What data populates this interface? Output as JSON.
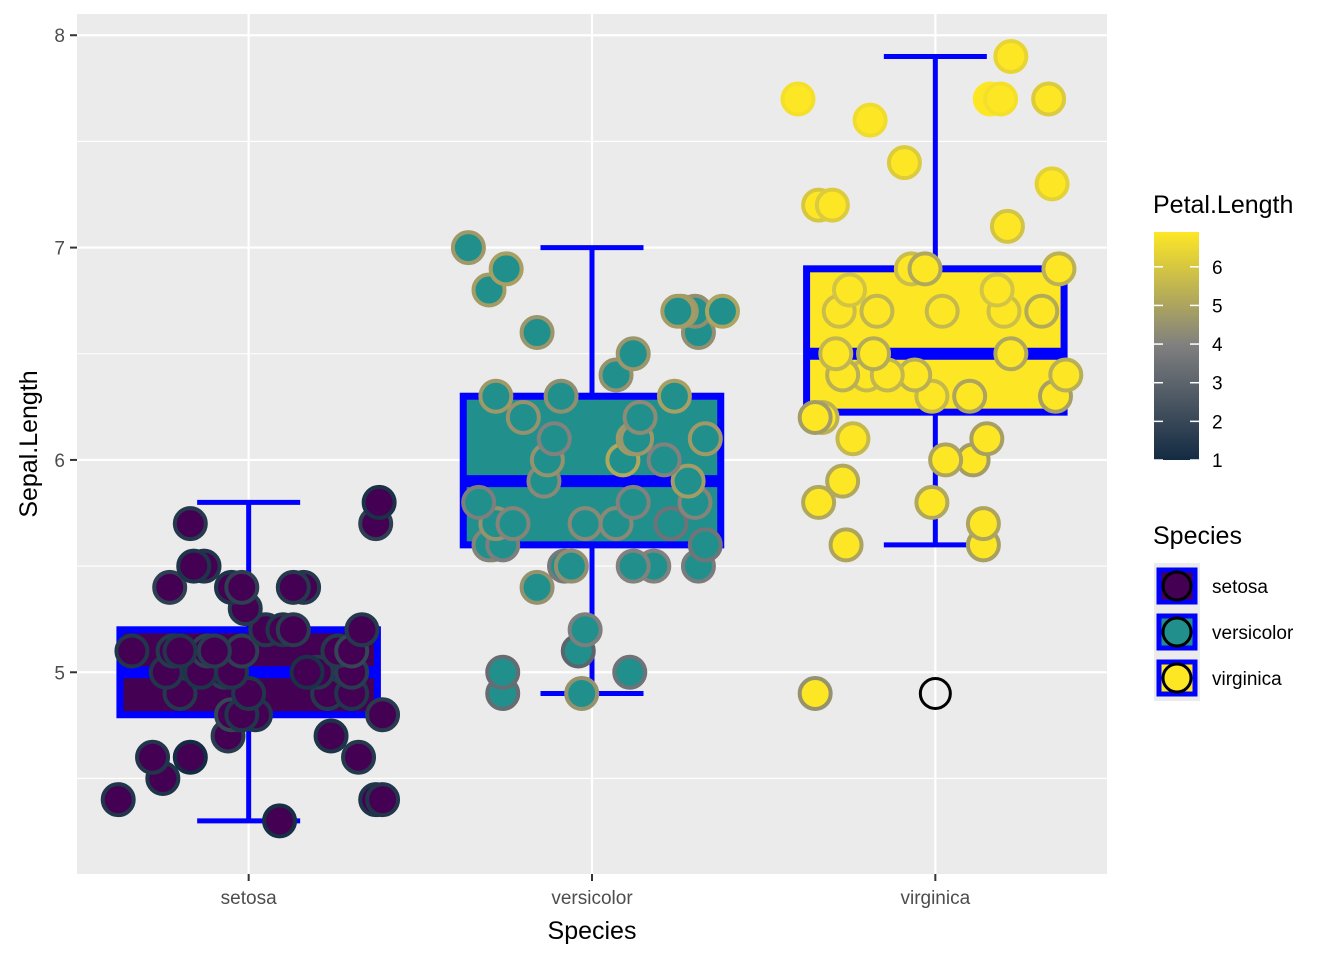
{
  "chart_data": {
    "type": "boxplot-jitter",
    "xlabel": "Species",
    "ylabel": "Sepal.Length",
    "categories": [
      "setosa",
      "versicolor",
      "virginica"
    ],
    "ylim": [
      4.05,
      8.1
    ],
    "y_ticks": [
      5,
      6,
      7,
      8
    ],
    "grid": true,
    "box_outline_color": "#0000ff",
    "panel_background": "#ebebeb",
    "grid_color": "#ffffff",
    "boxes": [
      {
        "category": "setosa",
        "min": 4.3,
        "q1": 4.8,
        "median": 5.0,
        "q3": 5.2,
        "max": 5.8,
        "fill": "#440154"
      },
      {
        "category": "versicolor",
        "min": 4.9,
        "q1": 5.6,
        "median": 5.9,
        "q3": 6.3,
        "max": 7.0,
        "fill": "#21908c"
      },
      {
        "category": "virginica",
        "min": 5.6,
        "q1": 6.225,
        "median": 6.5,
        "q3": 6.9,
        "max": 7.9,
        "fill": "#fde725"
      }
    ],
    "outliers": [
      {
        "category": "virginica",
        "y": 4.9
      }
    ],
    "points": [
      {
        "category": "setosa",
        "x_offset": -0.38,
        "y": 4.4,
        "petal_length": 1.4
      },
      {
        "category": "setosa",
        "x_offset": 0.09,
        "y": 4.3,
        "petal_length": 1.1
      },
      {
        "category": "setosa",
        "x_offset": 0.37,
        "y": 4.4,
        "petal_length": 1.3
      },
      {
        "category": "setosa",
        "x_offset": 0.39,
        "y": 4.4,
        "petal_length": 1.4
      },
      {
        "category": "setosa",
        "x_offset": -0.25,
        "y": 4.5,
        "petal_length": 1.3
      },
      {
        "category": "setosa",
        "x_offset": -0.28,
        "y": 4.6,
        "petal_length": 1.4
      },
      {
        "category": "setosa",
        "x_offset": -0.17,
        "y": 4.6,
        "petal_length": 1.0
      },
      {
        "category": "setosa",
        "x_offset": 0.32,
        "y": 4.6,
        "petal_length": 1.5
      },
      {
        "category": "setosa",
        "x_offset": 0.24,
        "y": 4.7,
        "petal_length": 1.3
      },
      {
        "category": "setosa",
        "x_offset": -0.06,
        "y": 4.7,
        "petal_length": 1.6
      },
      {
        "category": "setosa",
        "x_offset": -0.03,
        "y": 4.8,
        "petal_length": 1.6
      },
      {
        "category": "setosa",
        "x_offset": -0.05,
        "y": 4.8,
        "petal_length": 1.9
      },
      {
        "category": "setosa",
        "x_offset": 0.02,
        "y": 4.8,
        "petal_length": 1.4
      },
      {
        "category": "setosa",
        "x_offset": 0.39,
        "y": 4.8,
        "petal_length": 1.6
      },
      {
        "category": "setosa",
        "x_offset": -0.02,
        "y": 4.8,
        "petal_length": 1.4
      },
      {
        "category": "setosa",
        "x_offset": 0.0,
        "y": 4.9,
        "petal_length": 1.4
      },
      {
        "category": "setosa",
        "x_offset": -0.2,
        "y": 4.9,
        "petal_length": 1.5
      },
      {
        "category": "setosa",
        "x_offset": 0.23,
        "y": 4.9,
        "petal_length": 1.5
      },
      {
        "category": "setosa",
        "x_offset": 0.3,
        "y": 4.9,
        "petal_length": 1.4
      },
      {
        "category": "setosa",
        "x_offset": -0.24,
        "y": 5.0,
        "petal_length": 1.4
      },
      {
        "category": "setosa",
        "x_offset": -0.07,
        "y": 5.0,
        "petal_length": 1.6
      },
      {
        "category": "setosa",
        "x_offset": 0.2,
        "y": 5.0,
        "petal_length": 1.5
      },
      {
        "category": "setosa",
        "x_offset": 0.17,
        "y": 5.0,
        "petal_length": 1.2
      },
      {
        "category": "setosa",
        "x_offset": -0.14,
        "y": 5.0,
        "petal_length": 1.3
      },
      {
        "category": "setosa",
        "x_offset": 0.3,
        "y": 5.0,
        "petal_length": 1.6
      },
      {
        "category": "setosa",
        "x_offset": -0.05,
        "y": 5.0,
        "petal_length": 1.4
      },
      {
        "category": "setosa",
        "x_offset": -0.34,
        "y": 5.1,
        "petal_length": 1.4
      },
      {
        "category": "setosa",
        "x_offset": -0.22,
        "y": 5.1,
        "petal_length": 1.5
      },
      {
        "category": "setosa",
        "x_offset": -0.12,
        "y": 5.1,
        "petal_length": 1.7
      },
      {
        "category": "setosa",
        "x_offset": -0.22,
        "y": 5.1,
        "petal_length": 1.5
      },
      {
        "category": "setosa",
        "x_offset": -0.02,
        "y": 5.1,
        "petal_length": 1.7
      },
      {
        "category": "setosa",
        "x_offset": 0.26,
        "y": 5.1,
        "petal_length": 1.5
      },
      {
        "category": "setosa",
        "x_offset": 0.3,
        "y": 5.1,
        "petal_length": 1.9
      },
      {
        "category": "setosa",
        "x_offset": -0.1,
        "y": 5.1,
        "petal_length": 1.6
      },
      {
        "category": "setosa",
        "x_offset": -0.2,
        "y": 5.1,
        "petal_length": 1.4
      },
      {
        "category": "setosa",
        "x_offset": 0.05,
        "y": 5.2,
        "petal_length": 1.5
      },
      {
        "category": "setosa",
        "x_offset": 0.1,
        "y": 5.2,
        "petal_length": 1.4
      },
      {
        "category": "setosa",
        "x_offset": 0.33,
        "y": 5.2,
        "petal_length": 1.5
      },
      {
        "category": "setosa",
        "x_offset": 0.13,
        "y": 5.2,
        "petal_length": 1.6
      },
      {
        "category": "setosa",
        "x_offset": -0.01,
        "y": 5.3,
        "petal_length": 1.5
      },
      {
        "category": "setosa",
        "x_offset": -0.23,
        "y": 5.4,
        "petal_length": 1.7
      },
      {
        "category": "setosa",
        "x_offset": 0.16,
        "y": 5.4,
        "petal_length": 1.5
      },
      {
        "category": "setosa",
        "x_offset": -0.05,
        "y": 5.4,
        "petal_length": 1.3
      },
      {
        "category": "setosa",
        "x_offset": -0.02,
        "y": 5.4,
        "petal_length": 1.7
      },
      {
        "category": "setosa",
        "x_offset": 0.13,
        "y": 5.4,
        "petal_length": 1.5
      },
      {
        "category": "setosa",
        "x_offset": -0.13,
        "y": 5.5,
        "petal_length": 1.4
      },
      {
        "category": "setosa",
        "x_offset": -0.16,
        "y": 5.5,
        "petal_length": 1.3
      },
      {
        "category": "setosa",
        "x_offset": 0.37,
        "y": 5.7,
        "petal_length": 1.7
      },
      {
        "category": "setosa",
        "x_offset": -0.17,
        "y": 5.7,
        "petal_length": 1.5
      },
      {
        "category": "setosa",
        "x_offset": 0.38,
        "y": 5.8,
        "petal_length": 1.2
      },
      {
        "category": "versicolor",
        "x_offset": -0.26,
        "y": 4.9,
        "petal_length": 3.3
      },
      {
        "category": "versicolor",
        "x_offset": -0.03,
        "y": 4.9,
        "petal_length": 4.5
      },
      {
        "category": "versicolor",
        "x_offset": 0.11,
        "y": 5.0,
        "petal_length": 3.5
      },
      {
        "category": "versicolor",
        "x_offset": -0.26,
        "y": 5.0,
        "petal_length": 3.3
      },
      {
        "category": "versicolor",
        "x_offset": -0.04,
        "y": 5.1,
        "petal_length": 3.0
      },
      {
        "category": "versicolor",
        "x_offset": -0.02,
        "y": 5.2,
        "petal_length": 3.9
      },
      {
        "category": "versicolor",
        "x_offset": -0.16,
        "y": 5.4,
        "petal_length": 4.5
      },
      {
        "category": "versicolor",
        "x_offset": 0.18,
        "y": 5.5,
        "petal_length": 4.0
      },
      {
        "category": "versicolor",
        "x_offset": -0.08,
        "y": 5.5,
        "petal_length": 3.7
      },
      {
        "category": "versicolor",
        "x_offset": 0.31,
        "y": 5.5,
        "petal_length": 3.8
      },
      {
        "category": "versicolor",
        "x_offset": -0.06,
        "y": 5.5,
        "petal_length": 4.4
      },
      {
        "category": "versicolor",
        "x_offset": 0.12,
        "y": 5.5,
        "petal_length": 4.0
      },
      {
        "category": "versicolor",
        "x_offset": 0.33,
        "y": 5.6,
        "petal_length": 3.6
      },
      {
        "category": "versicolor",
        "x_offset": -0.29,
        "y": 5.6,
        "petal_length": 4.5
      },
      {
        "category": "versicolor",
        "x_offset": -0.3,
        "y": 5.6,
        "petal_length": 4.1
      },
      {
        "category": "versicolor",
        "x_offset": -0.26,
        "y": 5.6,
        "petal_length": 3.9
      },
      {
        "category": "versicolor",
        "x_offset": 0.07,
        "y": 5.7,
        "petal_length": 4.2
      },
      {
        "category": "versicolor",
        "x_offset": 0.23,
        "y": 5.7,
        "petal_length": 3.5
      },
      {
        "category": "versicolor",
        "x_offset": -0.28,
        "y": 5.7,
        "petal_length": 4.5
      },
      {
        "category": "versicolor",
        "x_offset": -0.02,
        "y": 5.7,
        "petal_length": 4.2
      },
      {
        "category": "versicolor",
        "x_offset": -0.23,
        "y": 5.7,
        "petal_length": 4.1
      },
      {
        "category": "versicolor",
        "x_offset": 0.3,
        "y": 5.8,
        "petal_length": 4.1
      },
      {
        "category": "versicolor",
        "x_offset": -0.33,
        "y": 5.8,
        "petal_length": 3.9
      },
      {
        "category": "versicolor",
        "x_offset": 0.12,
        "y": 5.8,
        "petal_length": 4.0
      },
      {
        "category": "versicolor",
        "x_offset": 0.28,
        "y": 5.9,
        "petal_length": 4.8
      },
      {
        "category": "versicolor",
        "x_offset": -0.14,
        "y": 5.9,
        "petal_length": 4.2
      },
      {
        "category": "versicolor",
        "x_offset": 0.09,
        "y": 6.0,
        "petal_length": 5.1
      },
      {
        "category": "versicolor",
        "x_offset": 0.21,
        "y": 6.0,
        "petal_length": 4.0
      },
      {
        "category": "versicolor",
        "x_offset": -0.13,
        "y": 6.0,
        "petal_length": 4.5
      },
      {
        "category": "versicolor",
        "x_offset": 0.12,
        "y": 6.1,
        "petal_length": 4.7
      },
      {
        "category": "versicolor",
        "x_offset": -0.11,
        "y": 6.1,
        "petal_length": 4.0
      },
      {
        "category": "versicolor",
        "x_offset": 0.33,
        "y": 6.1,
        "petal_length": 4.7
      },
      {
        "category": "versicolor",
        "x_offset": 0.13,
        "y": 6.1,
        "petal_length": 4.6
      },
      {
        "category": "versicolor",
        "x_offset": -0.2,
        "y": 6.2,
        "petal_length": 4.5
      },
      {
        "category": "versicolor",
        "x_offset": 0.14,
        "y": 6.2,
        "petal_length": 4.3
      },
      {
        "category": "versicolor",
        "x_offset": -0.09,
        "y": 6.3,
        "petal_length": 4.4
      },
      {
        "category": "versicolor",
        "x_offset": 0.24,
        "y": 6.3,
        "petal_length": 4.9
      },
      {
        "category": "versicolor",
        "x_offset": -0.28,
        "y": 6.3,
        "petal_length": 4.7
      },
      {
        "category": "versicolor",
        "x_offset": 0.07,
        "y": 6.4,
        "petal_length": 4.5
      },
      {
        "category": "versicolor",
        "x_offset": 0.12,
        "y": 6.5,
        "petal_length": 4.6
      },
      {
        "category": "versicolor",
        "x_offset": -0.16,
        "y": 6.6,
        "petal_length": 4.6
      },
      {
        "category": "versicolor",
        "x_offset": 0.31,
        "y": 6.6,
        "petal_length": 4.4
      },
      {
        "category": "versicolor",
        "x_offset": 0.3,
        "y": 6.7,
        "petal_length": 4.4
      },
      {
        "category": "versicolor",
        "x_offset": 0.38,
        "y": 6.7,
        "petal_length": 5.0
      },
      {
        "category": "versicolor",
        "x_offset": 0.26,
        "y": 6.7,
        "petal_length": 4.7
      },
      {
        "category": "versicolor",
        "x_offset": 0.25,
        "y": 6.7,
        "petal_length": 4.8
      },
      {
        "category": "versicolor",
        "x_offset": -0.3,
        "y": 6.8,
        "petal_length": 4.8
      },
      {
        "category": "versicolor",
        "x_offset": -0.25,
        "y": 6.9,
        "petal_length": 4.9
      },
      {
        "category": "versicolor",
        "x_offset": -0.36,
        "y": 7.0,
        "petal_length": 4.7
      },
      {
        "category": "virginica",
        "x_offset": -0.35,
        "y": 4.9,
        "petal_length": 4.5
      },
      {
        "category": "virginica",
        "x_offset": 0.14,
        "y": 5.6,
        "petal_length": 4.9
      },
      {
        "category": "virginica",
        "x_offset": -0.26,
        "y": 5.6,
        "petal_length": 5.0
      },
      {
        "category": "virginica",
        "x_offset": 0.14,
        "y": 5.7,
        "petal_length": 5.0
      },
      {
        "category": "virginica",
        "x_offset": -0.34,
        "y": 5.8,
        "petal_length": 5.1
      },
      {
        "category": "virginica",
        "x_offset": -0.01,
        "y": 5.8,
        "petal_length": 5.1
      },
      {
        "category": "virginica",
        "x_offset": -0.27,
        "y": 5.9,
        "petal_length": 5.1
      },
      {
        "category": "virginica",
        "x_offset": 0.11,
        "y": 6.0,
        "petal_length": 4.8
      },
      {
        "category": "virginica",
        "x_offset": 0.03,
        "y": 6.0,
        "petal_length": 5.0
      },
      {
        "category": "virginica",
        "x_offset": -0.24,
        "y": 6.1,
        "petal_length": 5.6
      },
      {
        "category": "virginica",
        "x_offset": 0.15,
        "y": 6.1,
        "petal_length": 4.9
      },
      {
        "category": "virginica",
        "x_offset": -0.33,
        "y": 6.2,
        "petal_length": 5.4
      },
      {
        "category": "virginica",
        "x_offset": -0.35,
        "y": 6.2,
        "petal_length": 4.8
      },
      {
        "category": "virginica",
        "x_offset": -0.01,
        "y": 6.3,
        "petal_length": 5.6
      },
      {
        "category": "virginica",
        "x_offset": 0.1,
        "y": 6.3,
        "petal_length": 5.0
      },
      {
        "category": "virginica",
        "x_offset": 0.35,
        "y": 6.3,
        "petal_length": 4.9
      },
      {
        "category": "virginica",
        "x_offset": -0.2,
        "y": 6.4,
        "petal_length": 5.6
      },
      {
        "category": "virginica",
        "x_offset": -0.06,
        "y": 6.4,
        "petal_length": 5.3
      },
      {
        "category": "virginica",
        "x_offset": -0.14,
        "y": 6.4,
        "petal_length": 5.5
      },
      {
        "category": "virginica",
        "x_offset": -0.27,
        "y": 6.4,
        "petal_length": 5.3
      },
      {
        "category": "virginica",
        "x_offset": 0.38,
        "y": 6.4,
        "petal_length": 5.3
      },
      {
        "category": "virginica",
        "x_offset": -0.29,
        "y": 6.5,
        "petal_length": 5.5
      },
      {
        "category": "virginica",
        "x_offset": -0.18,
        "y": 6.5,
        "petal_length": 5.2
      },
      {
        "category": "virginica",
        "x_offset": 0.22,
        "y": 6.5,
        "petal_length": 5.1
      },
      {
        "category": "virginica",
        "x_offset": 0.2,
        "y": 6.7,
        "petal_length": 5.8
      },
      {
        "category": "virginica",
        "x_offset": -0.28,
        "y": 6.7,
        "petal_length": 5.7
      },
      {
        "category": "virginica",
        "x_offset": 0.31,
        "y": 6.7,
        "petal_length": 5.2
      },
      {
        "category": "virginica",
        "x_offset": 0.02,
        "y": 6.7,
        "petal_length": 5.6
      },
      {
        "category": "virginica",
        "x_offset": -0.17,
        "y": 6.7,
        "petal_length": 5.5
      },
      {
        "category": "virginica",
        "x_offset": 0.18,
        "y": 6.8,
        "petal_length": 5.9
      },
      {
        "category": "virginica",
        "x_offset": -0.25,
        "y": 6.8,
        "petal_length": 5.9
      },
      {
        "category": "virginica",
        "x_offset": -0.07,
        "y": 6.9,
        "petal_length": 5.7
      },
      {
        "category": "virginica",
        "x_offset": -0.03,
        "y": 6.9,
        "petal_length": 5.1
      },
      {
        "category": "virginica",
        "x_offset": 0.36,
        "y": 6.9,
        "petal_length": 5.4
      },
      {
        "category": "virginica",
        "x_offset": 0.21,
        "y": 7.1,
        "petal_length": 5.9
      },
      {
        "category": "virginica",
        "x_offset": -0.34,
        "y": 7.2,
        "petal_length": 6.0
      },
      {
        "category": "virginica",
        "x_offset": -0.3,
        "y": 7.2,
        "petal_length": 6.1
      },
      {
        "category": "virginica",
        "x_offset": 0.34,
        "y": 7.3,
        "petal_length": 6.3
      },
      {
        "category": "virginica",
        "x_offset": -0.09,
        "y": 7.4,
        "petal_length": 6.1
      },
      {
        "category": "virginica",
        "x_offset": -0.19,
        "y": 7.6,
        "petal_length": 6.6
      },
      {
        "category": "virginica",
        "x_offset": -0.4,
        "y": 7.7,
        "petal_length": 6.7
      },
      {
        "category": "virginica",
        "x_offset": 0.16,
        "y": 7.7,
        "petal_length": 6.9
      },
      {
        "category": "virginica",
        "x_offset": 0.19,
        "y": 7.7,
        "petal_length": 6.7
      },
      {
        "category": "virginica",
        "x_offset": 0.33,
        "y": 7.7,
        "petal_length": 6.1
      },
      {
        "category": "virginica",
        "x_offset": 0.22,
        "y": 7.9,
        "petal_length": 6.4
      }
    ],
    "legends": {
      "colorbar": {
        "title": "Petal.Length",
        "min": 1,
        "max": 6.9,
        "ticks": [
          "1",
          "2",
          "3",
          "4",
          "5",
          "6"
        ],
        "low_color": "#132b43",
        "mid_color": "#7f7f7f",
        "high_color": "#fde725"
      },
      "species": {
        "title": "Species",
        "items": [
          {
            "label": "setosa",
            "color": "#440154"
          },
          {
            "label": "versicolor",
            "color": "#21908c"
          },
          {
            "label": "virginica",
            "color": "#fde725"
          }
        ]
      }
    }
  }
}
